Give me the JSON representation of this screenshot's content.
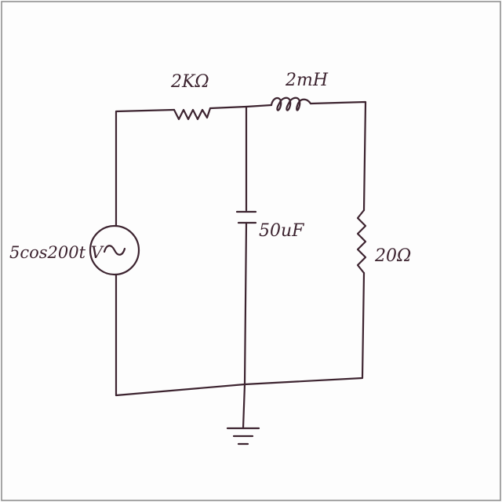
{
  "diagram": {
    "type": "circuit",
    "components": {
      "source": {
        "kind": "ac-voltage-source",
        "label": "5cos200t V"
      },
      "resistor_series": {
        "kind": "resistor",
        "label": "2KΩ"
      },
      "inductor": {
        "kind": "inductor",
        "label": "2mH"
      },
      "capacitor": {
        "kind": "capacitor",
        "label": "50uF"
      },
      "resistor_load": {
        "kind": "resistor",
        "label": "20Ω"
      },
      "ground": {
        "kind": "ground"
      }
    },
    "colors": {
      "ink": "#3d2430",
      "paper": "#fdfdfd",
      "border": "#8a8a8a"
    }
  }
}
